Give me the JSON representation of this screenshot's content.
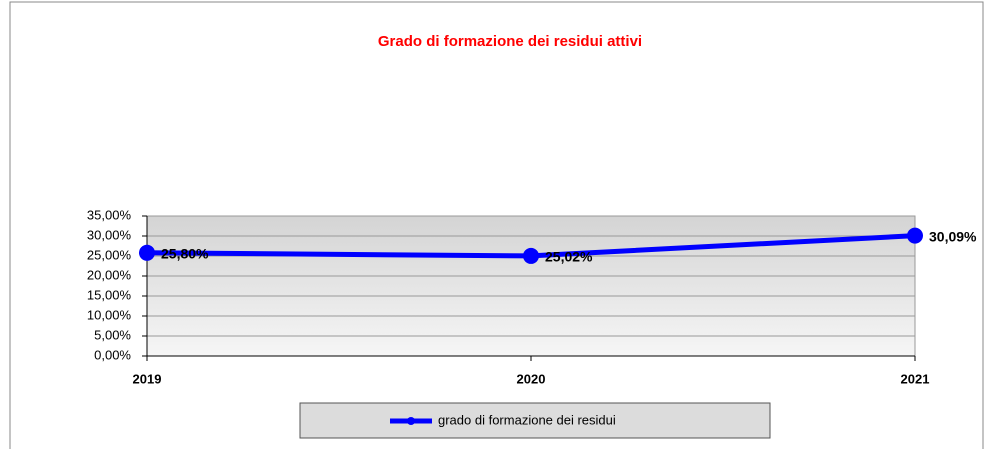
{
  "chart_data": {
    "type": "line",
    "title": "Grado di formazione dei residui attivi",
    "categories": [
      "2019",
      "2020",
      "2021"
    ],
    "series": [
      {
        "name": "grado di formazione dei residui",
        "color": "#0000ff",
        "values": [
          25.8,
          25.02,
          30.09
        ],
        "value_labels": [
          "25,80%",
          "25,02%",
          "30,09%"
        ]
      }
    ],
    "ylim": [
      0,
      35
    ],
    "yticks": [
      {
        "value": 0,
        "label": "0,00%"
      },
      {
        "value": 5,
        "label": "5,00%"
      },
      {
        "value": 10,
        "label": "10,00%"
      },
      {
        "value": 15,
        "label": "15,00%"
      },
      {
        "value": 20,
        "label": "20,00%"
      },
      {
        "value": 25,
        "label": "25,00%"
      },
      {
        "value": 30,
        "label": "30,00%"
      },
      {
        "value": 35,
        "label": "35,00%"
      }
    ],
    "grid": true,
    "legend": "bottom"
  }
}
